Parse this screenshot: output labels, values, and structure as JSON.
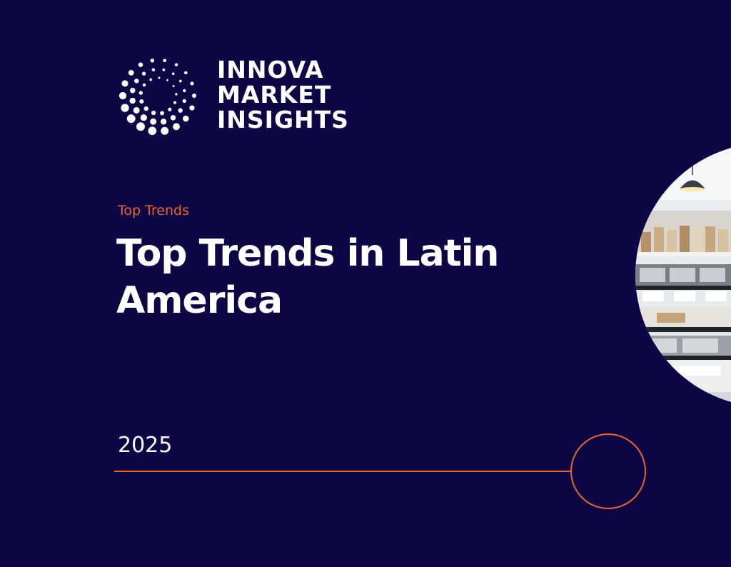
{
  "brand": {
    "logo_lines": [
      "INNOVA",
      "MARKET",
      "INSIGHTS"
    ]
  },
  "cover": {
    "kicker": "Top Trends",
    "title_line1": "Top Trends in Latin",
    "title_line2": "America",
    "year": "2025"
  },
  "colors": {
    "background": "#0d0645",
    "accent": "#e8642c",
    "text": "#ffffff"
  },
  "icons": {
    "logo": "dotted-circle-logo-icon",
    "timeline_marker": "circle-marker-icon"
  }
}
